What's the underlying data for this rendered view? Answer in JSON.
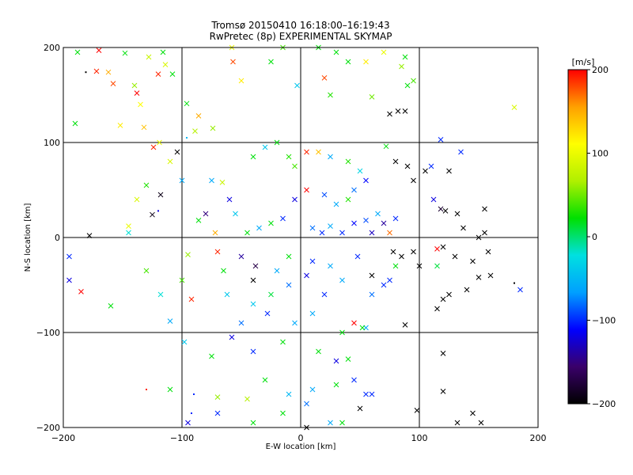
{
  "chart_data": {
    "type": "scatter",
    "title": "Tromsø 20150410 16:18:00–16:19:43",
    "subtitle": "RwPretec (8p) EXPERIMENTAL SKYMAP",
    "xlabel": "E-W location [km]",
    "ylabel": "N-S location [km]",
    "xlim": [
      -200,
      200
    ],
    "ylim": [
      -200,
      200
    ],
    "xticks": [
      -200,
      -100,
      0,
      100,
      200
    ],
    "yticks": [
      -200,
      -100,
      0,
      100,
      200
    ],
    "xtick_labels": [
      "−200",
      "−100",
      "0",
      "100",
      "200"
    ],
    "ytick_labels": [
      "−200",
      "−100",
      "0",
      "100",
      "200"
    ],
    "grid": true,
    "marker_types": [
      "cross",
      "dot"
    ],
    "colorbar": {
      "label": "[m/s]",
      "range": [
        -200,
        200
      ],
      "ticks": [
        200,
        100,
        0,
        -100,
        -200
      ],
      "tick_labels": [
        "200",
        "100",
        "0",
        "−100",
        "−200"
      ],
      "colormap": [
        "#000000",
        "#3a006a",
        "#0000ff",
        "#00a0ff",
        "#00e0e0",
        "#00e000",
        "#b0f000",
        "#ffff00",
        "#ffa000",
        "#ff0000"
      ]
    },
    "points": [
      {
        "x": -188,
        "y": 195,
        "v": 20,
        "m": "x"
      },
      {
        "x": -170,
        "y": 197,
        "v": 200,
        "m": "x"
      },
      {
        "x": -172,
        "y": 175,
        "v": 190,
        "m": "x"
      },
      {
        "x": -162,
        "y": 174,
        "v": 150,
        "m": "x"
      },
      {
        "x": -158,
        "y": 162,
        "v": 180,
        "m": "x"
      },
      {
        "x": -148,
        "y": 194,
        "v": 20,
        "m": "x"
      },
      {
        "x": -138,
        "y": 152,
        "v": 200,
        "m": "x"
      },
      {
        "x": -135,
        "y": 140,
        "v": 110,
        "m": "x"
      },
      {
        "x": -128,
        "y": 190,
        "v": 80,
        "m": "x"
      },
      {
        "x": -120,
        "y": 172,
        "v": 190,
        "m": "x"
      },
      {
        "x": -116,
        "y": 195,
        "v": 20,
        "m": "x"
      },
      {
        "x": -114,
        "y": 182,
        "v": 90,
        "m": "x"
      },
      {
        "x": -140,
        "y": 160,
        "v": 60,
        "m": "x"
      },
      {
        "x": -132,
        "y": 116,
        "v": 140,
        "m": "x"
      },
      {
        "x": -152,
        "y": 118,
        "v": 120,
        "m": "x"
      },
      {
        "x": -124,
        "y": 95,
        "v": 190,
        "m": "x"
      },
      {
        "x": -119,
        "y": 100,
        "v": 100,
        "m": "x"
      },
      {
        "x": -110,
        "y": 80,
        "v": 90,
        "m": "x"
      },
      {
        "x": -89,
        "y": 112,
        "v": 70,
        "m": "x"
      },
      {
        "x": -96,
        "y": 141,
        "v": 20,
        "m": "x"
      },
      {
        "x": -86,
        "y": 128,
        "v": 150,
        "m": "x"
      },
      {
        "x": -74,
        "y": 115,
        "v": 60,
        "m": "x"
      },
      {
        "x": -57,
        "y": 185,
        "v": 180,
        "m": "x"
      },
      {
        "x": -50,
        "y": 165,
        "v": 120,
        "m": "x"
      },
      {
        "x": -58,
        "y": 200,
        "v": 100,
        "m": "x"
      },
      {
        "x": -108,
        "y": 172,
        "v": 20,
        "m": "x"
      },
      {
        "x": -190,
        "y": 120,
        "v": 20,
        "m": "x"
      },
      {
        "x": -181,
        "y": 174,
        "v": -200,
        "m": "."
      },
      {
        "x": -104,
        "y": 90,
        "v": -200,
        "m": "x"
      },
      {
        "x": -96,
        "y": 105,
        "v": -50,
        "m": "."
      },
      {
        "x": -145,
        "y": 12,
        "v": 100,
        "m": "x"
      },
      {
        "x": -145,
        "y": 5,
        "v": -20,
        "m": "x"
      },
      {
        "x": -138,
        "y": 40,
        "v": 90,
        "m": "x"
      },
      {
        "x": -125,
        "y": 24,
        "v": -190,
        "m": "x"
      },
      {
        "x": -120,
        "y": 28,
        "v": -120,
        "m": "."
      },
      {
        "x": -178,
        "y": 2,
        "v": -200,
        "m": "x"
      },
      {
        "x": -195,
        "y": -20,
        "v": -100,
        "m": "x"
      },
      {
        "x": -195,
        "y": -45,
        "v": -120,
        "m": "x"
      },
      {
        "x": -185,
        "y": -57,
        "v": 200,
        "m": "x"
      },
      {
        "x": -160,
        "y": -72,
        "v": 20,
        "m": "x"
      },
      {
        "x": -130,
        "y": -35,
        "v": 40,
        "m": "x"
      },
      {
        "x": -118,
        "y": -60,
        "v": -20,
        "m": "x"
      },
      {
        "x": -110,
        "y": -88,
        "v": -60,
        "m": "x"
      },
      {
        "x": -92,
        "y": -65,
        "v": 190,
        "m": "x"
      },
      {
        "x": -95,
        "y": -18,
        "v": 60,
        "m": "x"
      },
      {
        "x": -100,
        "y": -45,
        "v": 40,
        "m": "x"
      },
      {
        "x": -110,
        "y": -160,
        "v": 20,
        "m": "x"
      },
      {
        "x": -95,
        "y": -195,
        "v": -120,
        "m": "x"
      },
      {
        "x": -92,
        "y": -185,
        "v": -100,
        "m": "."
      },
      {
        "x": -130,
        "y": -160,
        "v": 190,
        "m": "."
      },
      {
        "x": -98,
        "y": -110,
        "v": -40,
        "m": "x"
      },
      {
        "x": -75,
        "y": -125,
        "v": 20,
        "m": "x"
      },
      {
        "x": -70,
        "y": -168,
        "v": 60,
        "m": "x"
      },
      {
        "x": -45,
        "y": -170,
        "v": 70,
        "m": "x"
      },
      {
        "x": -58,
        "y": -105,
        "v": -120,
        "m": "x"
      },
      {
        "x": -62,
        "y": -60,
        "v": -40,
        "m": "x"
      },
      {
        "x": -50,
        "y": -90,
        "v": -80,
        "m": "x"
      },
      {
        "x": -40,
        "y": -70,
        "v": -40,
        "m": "x"
      },
      {
        "x": -40,
        "y": -45,
        "v": -200,
        "m": "x"
      },
      {
        "x": -28,
        "y": -80,
        "v": -100,
        "m": "x"
      },
      {
        "x": -25,
        "y": -60,
        "v": 10,
        "m": "x"
      },
      {
        "x": -20,
        "y": -35,
        "v": -60,
        "m": "x"
      },
      {
        "x": -38,
        "y": -30,
        "v": -170,
        "m": "x"
      },
      {
        "x": -50,
        "y": -20,
        "v": -140,
        "m": "x"
      },
      {
        "x": -65,
        "y": -35,
        "v": 20,
        "m": "x"
      },
      {
        "x": -70,
        "y": -15,
        "v": 190,
        "m": "x"
      },
      {
        "x": -72,
        "y": 5,
        "v": 150,
        "m": "x"
      },
      {
        "x": -80,
        "y": 25,
        "v": -150,
        "m": "x"
      },
      {
        "x": -86,
        "y": 18,
        "v": 20,
        "m": "x"
      },
      {
        "x": -55,
        "y": 25,
        "v": -40,
        "m": "x"
      },
      {
        "x": -60,
        "y": 40,
        "v": -120,
        "m": "x"
      },
      {
        "x": -66,
        "y": 58,
        "v": 80,
        "m": "x"
      },
      {
        "x": -75,
        "y": 60,
        "v": -60,
        "m": "x"
      },
      {
        "x": -100,
        "y": 60,
        "v": -60,
        "m": "x"
      },
      {
        "x": -118,
        "y": 45,
        "v": -190,
        "m": "x"
      },
      {
        "x": -130,
        "y": 55,
        "v": 30,
        "m": "x"
      },
      {
        "x": -40,
        "y": 85,
        "v": 20,
        "m": "x"
      },
      {
        "x": -30,
        "y": 95,
        "v": -40,
        "m": "x"
      },
      {
        "x": -20,
        "y": 100,
        "v": 20,
        "m": "x"
      },
      {
        "x": -10,
        "y": 85,
        "v": 30,
        "m": "x"
      },
      {
        "x": -5,
        "y": 75,
        "v": 40,
        "m": "x"
      },
      {
        "x": 5,
        "y": 90,
        "v": 190,
        "m": "x"
      },
      {
        "x": 15,
        "y": 90,
        "v": 140,
        "m": "x"
      },
      {
        "x": 25,
        "y": 85,
        "v": -60,
        "m": "x"
      },
      {
        "x": 40,
        "y": 80,
        "v": 30,
        "m": "x"
      },
      {
        "x": 50,
        "y": 70,
        "v": -30,
        "m": "x"
      },
      {
        "x": 55,
        "y": 60,
        "v": -110,
        "m": "x"
      },
      {
        "x": 45,
        "y": 50,
        "v": -80,
        "m": "x"
      },
      {
        "x": 40,
        "y": 40,
        "v": 30,
        "m": "x"
      },
      {
        "x": 30,
        "y": 35,
        "v": -60,
        "m": "x"
      },
      {
        "x": 20,
        "y": 45,
        "v": -90,
        "m": "x"
      },
      {
        "x": 5,
        "y": 50,
        "v": 200,
        "m": "x"
      },
      {
        "x": -5,
        "y": 40,
        "v": -120,
        "m": "x"
      },
      {
        "x": -15,
        "y": 20,
        "v": -100,
        "m": "x"
      },
      {
        "x": -25,
        "y": 15,
        "v": 20,
        "m": "x"
      },
      {
        "x": -35,
        "y": 10,
        "v": -60,
        "m": "x"
      },
      {
        "x": -45,
        "y": 5,
        "v": 20,
        "m": "x"
      },
      {
        "x": 10,
        "y": 10,
        "v": -80,
        "m": "x"
      },
      {
        "x": 18,
        "y": 5,
        "v": -100,
        "m": "x"
      },
      {
        "x": 25,
        "y": 12,
        "v": -60,
        "m": "x"
      },
      {
        "x": 35,
        "y": 5,
        "v": -100,
        "m": "x"
      },
      {
        "x": 45,
        "y": 15,
        "v": -110,
        "m": "x"
      },
      {
        "x": 55,
        "y": 18,
        "v": -90,
        "m": "x"
      },
      {
        "x": 60,
        "y": 5,
        "v": -130,
        "m": "x"
      },
      {
        "x": 65,
        "y": 25,
        "v": -60,
        "m": "x"
      },
      {
        "x": 70,
        "y": 15,
        "v": -140,
        "m": "x"
      },
      {
        "x": 75,
        "y": 5,
        "v": 170,
        "m": "x"
      },
      {
        "x": 80,
        "y": 20,
        "v": -100,
        "m": "x"
      },
      {
        "x": 72,
        "y": 96,
        "v": 20,
        "m": "x"
      },
      {
        "x": 70,
        "y": 195,
        "v": 100,
        "m": "x"
      },
      {
        "x": 88,
        "y": 190,
        "v": 20,
        "m": "x"
      },
      {
        "x": 85,
        "y": 180,
        "v": 60,
        "m": "x"
      },
      {
        "x": 95,
        "y": 165,
        "v": 40,
        "m": "x"
      },
      {
        "x": 55,
        "y": 185,
        "v": 120,
        "m": "x"
      },
      {
        "x": 40,
        "y": 185,
        "v": 20,
        "m": "x"
      },
      {
        "x": 30,
        "y": 195,
        "v": 20,
        "m": "x"
      },
      {
        "x": 20,
        "y": 168,
        "v": 180,
        "m": "x"
      },
      {
        "x": 15,
        "y": 200,
        "v": 20,
        "m": "x"
      },
      {
        "x": -15,
        "y": 200,
        "v": 40,
        "m": "x"
      },
      {
        "x": -25,
        "y": 185,
        "v": 20,
        "m": "x"
      },
      {
        "x": 25,
        "y": 150,
        "v": 30,
        "m": "x"
      },
      {
        "x": 60,
        "y": 148,
        "v": 50,
        "m": "x"
      },
      {
        "x": 75,
        "y": 130,
        "v": -200,
        "m": "x"
      },
      {
        "x": 82,
        "y": 133,
        "v": -200,
        "m": "x"
      },
      {
        "x": 88,
        "y": 133,
        "v": -200,
        "m": "x"
      },
      {
        "x": 90,
        "y": 160,
        "v": 20,
        "m": "x"
      },
      {
        "x": -3,
        "y": 160,
        "v": -40,
        "m": "x"
      },
      {
        "x": 180,
        "y": 137,
        "v": 90,
        "m": "x"
      },
      {
        "x": 80,
        "y": 80,
        "v": -200,
        "m": "x"
      },
      {
        "x": 90,
        "y": 75,
        "v": -200,
        "m": "x"
      },
      {
        "x": 95,
        "y": 60,
        "v": -200,
        "m": "x"
      },
      {
        "x": 105,
        "y": 70,
        "v": -200,
        "m": "x"
      },
      {
        "x": 110,
        "y": 75,
        "v": -100,
        "m": "x"
      },
      {
        "x": 125,
        "y": 70,
        "v": -200,
        "m": "x"
      },
      {
        "x": 135,
        "y": 90,
        "v": -100,
        "m": "x"
      },
      {
        "x": 118,
        "y": 103,
        "v": -100,
        "m": "x"
      },
      {
        "x": 112,
        "y": 40,
        "v": -120,
        "m": "x"
      },
      {
        "x": 118,
        "y": 30,
        "v": -180,
        "m": "x"
      },
      {
        "x": 122,
        "y": 28,
        "v": -200,
        "m": "x"
      },
      {
        "x": 132,
        "y": 25,
        "v": -200,
        "m": "x"
      },
      {
        "x": 137,
        "y": 10,
        "v": -200,
        "m": "x"
      },
      {
        "x": 150,
        "y": 0,
        "v": -200,
        "m": "x"
      },
      {
        "x": 155,
        "y": 5,
        "v": -200,
        "m": "x"
      },
      {
        "x": 155,
        "y": 30,
        "v": -200,
        "m": "x"
      },
      {
        "x": 115,
        "y": -12,
        "v": 200,
        "m": "x"
      },
      {
        "x": 120,
        "y": -10,
        "v": -200,
        "m": "x"
      },
      {
        "x": 130,
        "y": -20,
        "v": -200,
        "m": "x"
      },
      {
        "x": 145,
        "y": -25,
        "v": -200,
        "m": "x"
      },
      {
        "x": 158,
        "y": -15,
        "v": -200,
        "m": "x"
      },
      {
        "x": 160,
        "y": -40,
        "v": -200,
        "m": "x"
      },
      {
        "x": 150,
        "y": -42,
        "v": -200,
        "m": "x"
      },
      {
        "x": 140,
        "y": -55,
        "v": -200,
        "m": "x"
      },
      {
        "x": 125,
        "y": -60,
        "v": -200,
        "m": "x"
      },
      {
        "x": 120,
        "y": -65,
        "v": -200,
        "m": "x"
      },
      {
        "x": 115,
        "y": -75,
        "v": -200,
        "m": "x"
      },
      {
        "x": 100,
        "y": -30,
        "v": -200,
        "m": "x"
      },
      {
        "x": 95,
        "y": -15,
        "v": -200,
        "m": "x"
      },
      {
        "x": 85,
        "y": -20,
        "v": -200,
        "m": "x"
      },
      {
        "x": 78,
        "y": -15,
        "v": -200,
        "m": "x"
      },
      {
        "x": 75,
        "y": -45,
        "v": -100,
        "m": "x"
      },
      {
        "x": 60,
        "y": -40,
        "v": -200,
        "m": "x"
      },
      {
        "x": 115,
        "y": -30,
        "v": 10,
        "m": "x"
      },
      {
        "x": 120,
        "y": -122,
        "v": -200,
        "m": "x"
      },
      {
        "x": 120,
        "y": -162,
        "v": -200,
        "m": "x"
      },
      {
        "x": 98,
        "y": -182,
        "v": -200,
        "m": "x"
      },
      {
        "x": 132,
        "y": -195,
        "v": -200,
        "m": "x"
      },
      {
        "x": 145,
        "y": -185,
        "v": -200,
        "m": "x"
      },
      {
        "x": 152,
        "y": -195,
        "v": -200,
        "m": "x"
      },
      {
        "x": 185,
        "y": -55,
        "v": -100,
        "m": "x"
      },
      {
        "x": 180,
        "y": -48,
        "v": -200,
        "m": "."
      },
      {
        "x": 88,
        "y": -92,
        "v": -200,
        "m": "x"
      },
      {
        "x": 50,
        "y": -180,
        "v": -200,
        "m": "x"
      },
      {
        "x": 60,
        "y": -165,
        "v": -100,
        "m": "x"
      },
      {
        "x": 55,
        "y": -165,
        "v": -100,
        "m": "x"
      },
      {
        "x": 45,
        "y": -150,
        "v": -100,
        "m": "x"
      },
      {
        "x": 30,
        "y": -155,
        "v": 20,
        "m": "x"
      },
      {
        "x": 35,
        "y": -195,
        "v": 20,
        "m": "x"
      },
      {
        "x": 25,
        "y": -195,
        "v": -60,
        "m": "x"
      },
      {
        "x": 10,
        "y": -160,
        "v": -60,
        "m": "x"
      },
      {
        "x": 5,
        "y": -175,
        "v": -80,
        "m": "x"
      },
      {
        "x": 5,
        "y": -200,
        "v": -200,
        "m": "x"
      },
      {
        "x": -10,
        "y": -165,
        "v": -50,
        "m": "x"
      },
      {
        "x": -15,
        "y": -185,
        "v": 20,
        "m": "x"
      },
      {
        "x": -30,
        "y": -150,
        "v": 20,
        "m": "x"
      },
      {
        "x": -40,
        "y": -195,
        "v": 20,
        "m": "x"
      },
      {
        "x": -70,
        "y": -185,
        "v": -100,
        "m": "x"
      },
      {
        "x": -90,
        "y": -165,
        "v": -100,
        "m": "."
      },
      {
        "x": 30,
        "y": -130,
        "v": -120,
        "m": "x"
      },
      {
        "x": 40,
        "y": -128,
        "v": 20,
        "m": "x"
      },
      {
        "x": 15,
        "y": -120,
        "v": 20,
        "m": "x"
      },
      {
        "x": 35,
        "y": -100,
        "v": 20,
        "m": "x"
      },
      {
        "x": 55,
        "y": -95,
        "v": -60,
        "m": "x"
      },
      {
        "x": 45,
        "y": -90,
        "v": 200,
        "m": "x"
      },
      {
        "x": 70,
        "y": -50,
        "v": -100,
        "m": "x"
      },
      {
        "x": 80,
        "y": -30,
        "v": 20,
        "m": "x"
      },
      {
        "x": 60,
        "y": -60,
        "v": -80,
        "m": "x"
      },
      {
        "x": 20,
        "y": -60,
        "v": -100,
        "m": "x"
      },
      {
        "x": 10,
        "y": -80,
        "v": -60,
        "m": "x"
      },
      {
        "x": -10,
        "y": -50,
        "v": -80,
        "m": "x"
      },
      {
        "x": -5,
        "y": -90,
        "v": -60,
        "m": "x"
      },
      {
        "x": -15,
        "y": -110,
        "v": 20,
        "m": "x"
      },
      {
        "x": -40,
        "y": -120,
        "v": -100,
        "m": "x"
      },
      {
        "x": 10,
        "y": -25,
        "v": -100,
        "m": "x"
      },
      {
        "x": 25,
        "y": -30,
        "v": -60,
        "m": "x"
      },
      {
        "x": -10,
        "y": -20,
        "v": 20,
        "m": "x"
      },
      {
        "x": 5,
        "y": -40,
        "v": -120,
        "m": "x"
      },
      {
        "x": 35,
        "y": -45,
        "v": -60,
        "m": "x"
      },
      {
        "x": 48,
        "y": -20,
        "v": -100,
        "m": "x"
      },
      {
        "x": 52,
        "y": -95,
        "v": 20,
        "m": "x"
      }
    ]
  }
}
